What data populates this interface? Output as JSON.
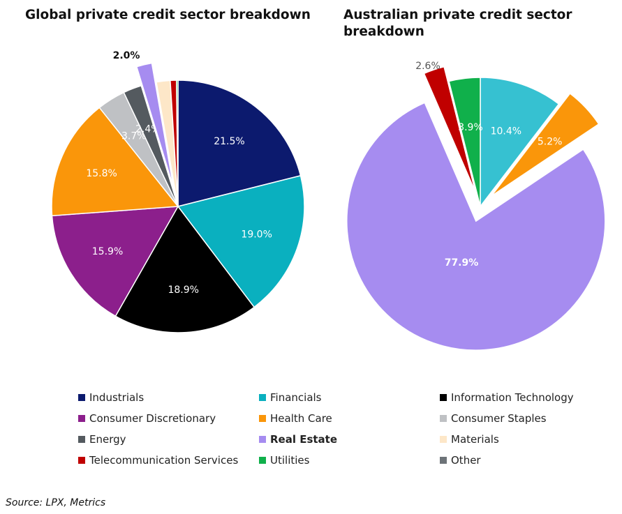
{
  "charts": [
    {
      "title": "Global private credit sector breakdown",
      "chart_data": {
        "type": "pie",
        "slices": [
          {
            "name": "Industrials",
            "value": 21.5,
            "label": "21.5%",
            "color": "#0c1a6e",
            "label_color": "#ffffff"
          },
          {
            "name": "Financials",
            "value": 19.0,
            "label": "19.0%",
            "color": "#0ab0bf",
            "label_color": "#ffffff"
          },
          {
            "name": "Information Technology",
            "value": 18.9,
            "label": "18.9%",
            "color": "#000000",
            "label_color": "#ffffff"
          },
          {
            "name": "Consumer Discretionary",
            "value": 15.9,
            "label": "15.9%",
            "color": "#8c1f8c",
            "label_color": "#ffffff"
          },
          {
            "name": "Health Care",
            "value": 15.8,
            "label": "15.8%",
            "color": "#fa960a",
            "label_color": "#ffffff"
          },
          {
            "name": "Consumer Staples",
            "value": 3.7,
            "label": "3.7%",
            "color": "#bfc1c4",
            "label_color": "#ffffff"
          },
          {
            "name": "Energy",
            "value": 2.4,
            "label": "2.4%",
            "color": "#545a5f",
            "label_color": "#ffffff"
          },
          {
            "name": "Real Estate",
            "value": 2.0,
            "label": "2.0%",
            "color": "#a68cf0",
            "label_color": "#111111",
            "exploded": true,
            "label_bold": true
          },
          {
            "name": "Materials",
            "value": 1.8,
            "label": "",
            "color": "#fde7c8"
          },
          {
            "name": "Telecommunication Services",
            "value": 0.8,
            "label": "",
            "color": "#c00000"
          },
          {
            "name": "Utilities",
            "value": 0.2,
            "label": "",
            "color": "#10b04b"
          }
        ]
      }
    },
    {
      "title": "Australian private credit sector breakdown",
      "chart_data": {
        "type": "pie",
        "slices": [
          {
            "name": "Financials",
            "value": 10.4,
            "label": "10.4%",
            "color": "#36c1d1",
            "label_color": "#ffffff"
          },
          {
            "name": "Health Care",
            "value": 5.2,
            "label": "5.2%",
            "color": "#fa960a",
            "label_color": "#ffffff",
            "exploded": true
          },
          {
            "name": "Real Estate",
            "value": 77.9,
            "label": "77.9%",
            "color": "#a68cf0",
            "label_color": "#ffffff",
            "exploded": true,
            "label_bold": true
          },
          {
            "name": "Telecommunication Services",
            "value": 2.6,
            "label": "2.6%",
            "color": "#c00000",
            "label_color": "#555555",
            "exploded": true
          },
          {
            "name": "Utilities",
            "value": 3.9,
            "label": "3.9%",
            "color": "#10b04b",
            "label_color": "#ffffff"
          }
        ]
      }
    }
  ],
  "legend": [
    {
      "label": "Industrials",
      "color": "#0c1a6e",
      "bold": false
    },
    {
      "label": "Financials",
      "color": "#0ab0bf",
      "bold": false
    },
    {
      "label": "Information Technology",
      "color": "#000000",
      "bold": false
    },
    {
      "label": "Consumer Discretionary",
      "color": "#8c1f8c",
      "bold": false
    },
    {
      "label": "Health Care",
      "color": "#fa960a",
      "bold": false
    },
    {
      "label": "Consumer Staples",
      "color": "#bfc1c4",
      "bold": false
    },
    {
      "label": "Energy",
      "color": "#545a5f",
      "bold": false
    },
    {
      "label": "Real Estate",
      "color": "#a68cf0",
      "bold": true
    },
    {
      "label": "Materials",
      "color": "#fde7c8",
      "bold": false
    },
    {
      "label": "Telecommunication Services",
      "color": "#c00000",
      "bold": false
    },
    {
      "label": "Utilities",
      "color": "#10b04b",
      "bold": false
    },
    {
      "label": "Other",
      "color": "#6d7378",
      "bold": false
    }
  ],
  "source": "Source: LPX, Metrics"
}
